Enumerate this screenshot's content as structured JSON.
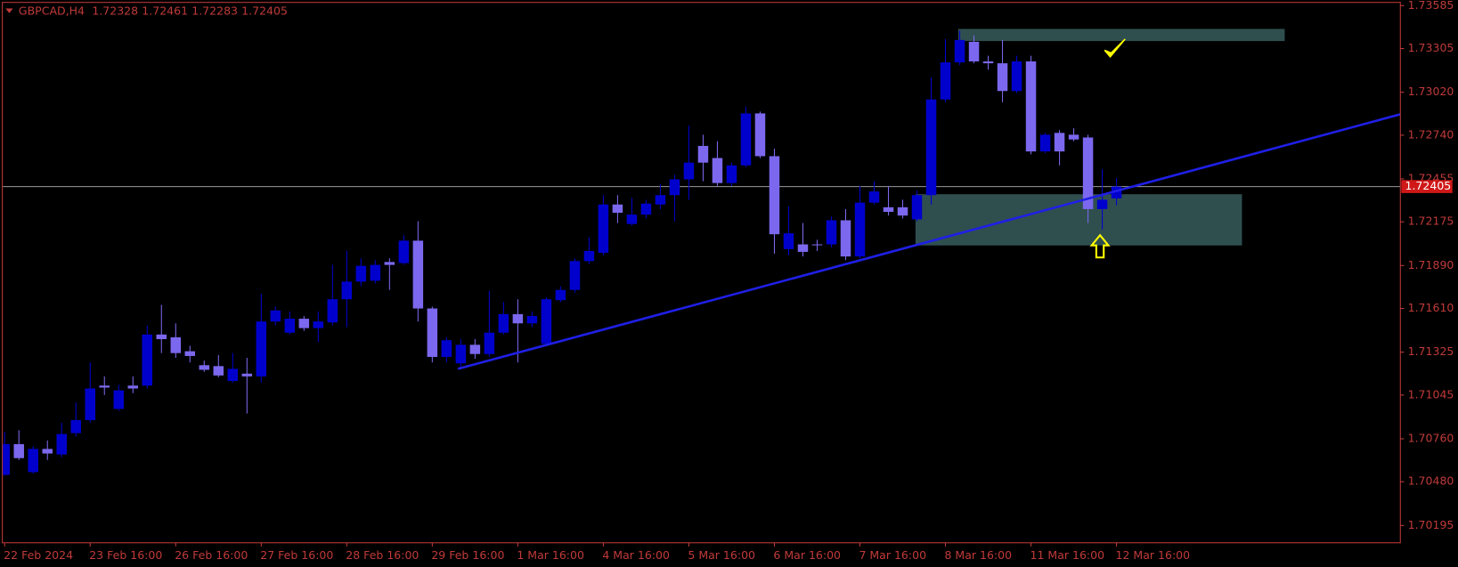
{
  "chart_data": {
    "type": "candlestick",
    "title": "GBPCAD,H4",
    "up_color": "#0000cd",
    "down_color": "#7b68ee",
    "categories": [
      "22 Feb 2024",
      null,
      null,
      null,
      null,
      null,
      "23 Feb 16:00",
      null,
      null,
      null,
      null,
      null,
      "26 Feb 16:00",
      null,
      null,
      null,
      null,
      null,
      "27 Feb 16:00",
      null,
      null,
      null,
      null,
      null,
      "28 Feb 16:00",
      null,
      null,
      null,
      null,
      null,
      "29 Feb 16:00",
      null,
      null,
      null,
      null,
      null,
      "1 Mar 16:00",
      null,
      null,
      null,
      null,
      null,
      "4 Mar 16:00",
      null,
      null,
      null,
      null,
      null,
      "5 Mar 16:00",
      null,
      null,
      null,
      null,
      null,
      "6 Mar 16:00",
      null,
      null,
      null,
      null,
      null,
      "7 Mar 16:00",
      null,
      null,
      null,
      null,
      null,
      "8 Mar 16:00",
      null,
      null,
      null,
      null,
      null,
      "11 Mar 16:00",
      null,
      null,
      null,
      null,
      null,
      "12 Mar 16:00"
    ],
    "open": [
      1.70525,
      1.70725,
      1.70543,
      1.70694,
      1.70658,
      1.70797,
      1.70882,
      1.71107,
      1.70955,
      1.71107,
      1.71107,
      1.7144,
      1.71422,
      1.71331,
      1.7124,
      1.71234,
      1.71137,
      1.71185,
      1.71167,
      1.71525,
      1.71452,
      1.71543,
      1.71482,
      1.71519,
      1.7167,
      1.71785,
      1.71791,
      1.71913,
      1.71906,
      1.72052,
      1.7161,
      1.71294,
      1.71252,
      1.71373,
      1.71313,
      1.71452,
      1.71573,
      1.71513,
      1.71379,
      1.71664,
      1.71731,
      1.71919,
      1.71973,
      1.72288,
      1.72161,
      1.72222,
      1.72288,
      1.72349,
      1.72452,
      1.7267,
      1.72591,
      1.72428,
      1.72543,
      1.72882,
      1.72603,
      1.71997,
      1.72028,
      1.72028,
      1.72028,
      1.72185,
      1.71949,
      1.723,
      1.7227,
      1.7227,
      1.72191,
      1.72349,
      1.72973,
      1.73215,
      1.73349,
      1.73221,
      1.73209,
      1.73028,
      1.73221,
      1.72634,
      1.72755,
      1.72743,
      1.72725,
      1.72258,
      1.72328
    ],
    "high": [
      1.70804,
      1.70816,
      1.70713,
      1.70749,
      1.70864,
      1.70997,
      1.71258,
      1.71167,
      1.71113,
      1.71167,
      1.715,
      1.71634,
      1.71513,
      1.71367,
      1.7127,
      1.71306,
      1.71319,
      1.71288,
      1.71706,
      1.71622,
      1.71591,
      1.71561,
      1.71591,
      1.71894,
      1.71985,
      1.71937,
      1.71925,
      1.71937,
      1.72088,
      1.72179,
      1.71622,
      1.71422,
      1.7141,
      1.7141,
      1.71725,
      1.71652,
      1.7167,
      1.71591,
      1.71682,
      1.71755,
      1.71937,
      1.72076,
      1.72349,
      1.72349,
      1.72331,
      1.72319,
      1.72422,
      1.72482,
      1.72803,
      1.72743,
      1.727,
      1.72561,
      1.72925,
      1.72894,
      1.72652,
      1.72276,
      1.72167,
      1.72058,
      1.72209,
      1.72258,
      1.72409,
      1.7244,
      1.72409,
      1.72319,
      1.72379,
      1.73118,
      1.73367,
      1.73421,
      1.73391,
      1.73258,
      1.73361,
      1.73258,
      1.73258,
      1.72755,
      1.72773,
      1.72785,
      1.72743,
      1.72519,
      1.72461
    ],
    "low": [
      1.70519,
      1.70622,
      1.70531,
      1.70622,
      1.7064,
      1.70773,
      1.70864,
      1.71046,
      1.70943,
      1.71058,
      1.71088,
      1.71319,
      1.71288,
      1.71258,
      1.71197,
      1.71161,
      1.71125,
      1.70925,
      1.71125,
      1.715,
      1.7144,
      1.71464,
      1.71391,
      1.715,
      1.71488,
      1.71755,
      1.71773,
      1.71731,
      1.71894,
      1.71525,
      1.71258,
      1.71258,
      1.71222,
      1.71282,
      1.71294,
      1.7144,
      1.71258,
      1.71488,
      1.71367,
      1.71652,
      1.71713,
      1.719,
      1.71955,
      1.72167,
      1.72149,
      1.72197,
      1.72258,
      1.72179,
      1.72319,
      1.7244,
      1.72409,
      1.72409,
      1.72531,
      1.72591,
      1.71967,
      1.71955,
      1.71949,
      1.71985,
      1.72009,
      1.71925,
      1.71937,
      1.72288,
      1.72216,
      1.72197,
      1.72179,
      1.72288,
      1.72955,
      1.73197,
      1.73209,
      1.73167,
      1.72955,
      1.73015,
      1.72615,
      1.72622,
      1.72543,
      1.727,
      1.72167,
      1.72125,
      1.72283
    ],
    "close": [
      1.70725,
      1.70634,
      1.70694,
      1.70664,
      1.70791,
      1.70882,
      1.71088,
      1.71094,
      1.71076,
      1.71088,
      1.7144,
      1.7141,
      1.71319,
      1.713,
      1.7121,
      1.71173,
      1.71216,
      1.71167,
      1.71525,
      1.71597,
      1.71543,
      1.71482,
      1.71525,
      1.7167,
      1.71785,
      1.71888,
      1.71894,
      1.71894,
      1.72052,
      1.7161,
      1.71294,
      1.71403,
      1.71373,
      1.71313,
      1.71452,
      1.71573,
      1.71513,
      1.71561,
      1.7167,
      1.71731,
      1.71919,
      1.71985,
      1.72288,
      1.72234,
      1.72222,
      1.72294,
      1.72349,
      1.72452,
      1.72561,
      1.72561,
      1.72428,
      1.72543,
      1.72882,
      1.72603,
      1.72094,
      1.721,
      1.71979,
      1.72022,
      1.72185,
      1.71949,
      1.723,
      1.72373,
      1.7224,
      1.72216,
      1.72349,
      1.72973,
      1.73215,
      1.73361,
      1.73221,
      1.73209,
      1.73028,
      1.73221,
      1.72634,
      1.72743,
      1.72634,
      1.72712,
      1.72258,
      1.72319,
      1.72405
    ],
    "ylim": [
      1.70082,
      1.73609
    ],
    "yticks": [
      1.73585,
      1.73305,
      {
        "value": 1.7302,
        "label": "1.73020"
      },
      {
        "value": 1.7274,
        "label": "1.72740"
      },
      1.72455,
      1.72175,
      {
        "value": 1.7189,
        "label": "1.71890"
      },
      {
        "value": 1.7161,
        "label": "1.71610"
      },
      1.71325,
      1.71045,
      {
        "value": 1.7076,
        "label": "1.70760"
      },
      {
        "value": 1.7048,
        "label": "1.70480"
      },
      1.70195
    ],
    "trendline": {
      "color": "#1f1fe6",
      "x": [
        31.8,
        97.9
      ],
      "values": [
        1.71216,
        1.72876
      ]
    },
    "zones": [
      {
        "color": "#2f4f4f",
        "x": [
          66.9,
          89.8
        ],
        "values": [
          1.73433,
          1.73354
        ]
      },
      {
        "color": "#2f4f4f",
        "x": [
          63.9,
          86.8
        ],
        "values": [
          1.72355,
          1.72021
        ]
      }
    ]
  }
}
